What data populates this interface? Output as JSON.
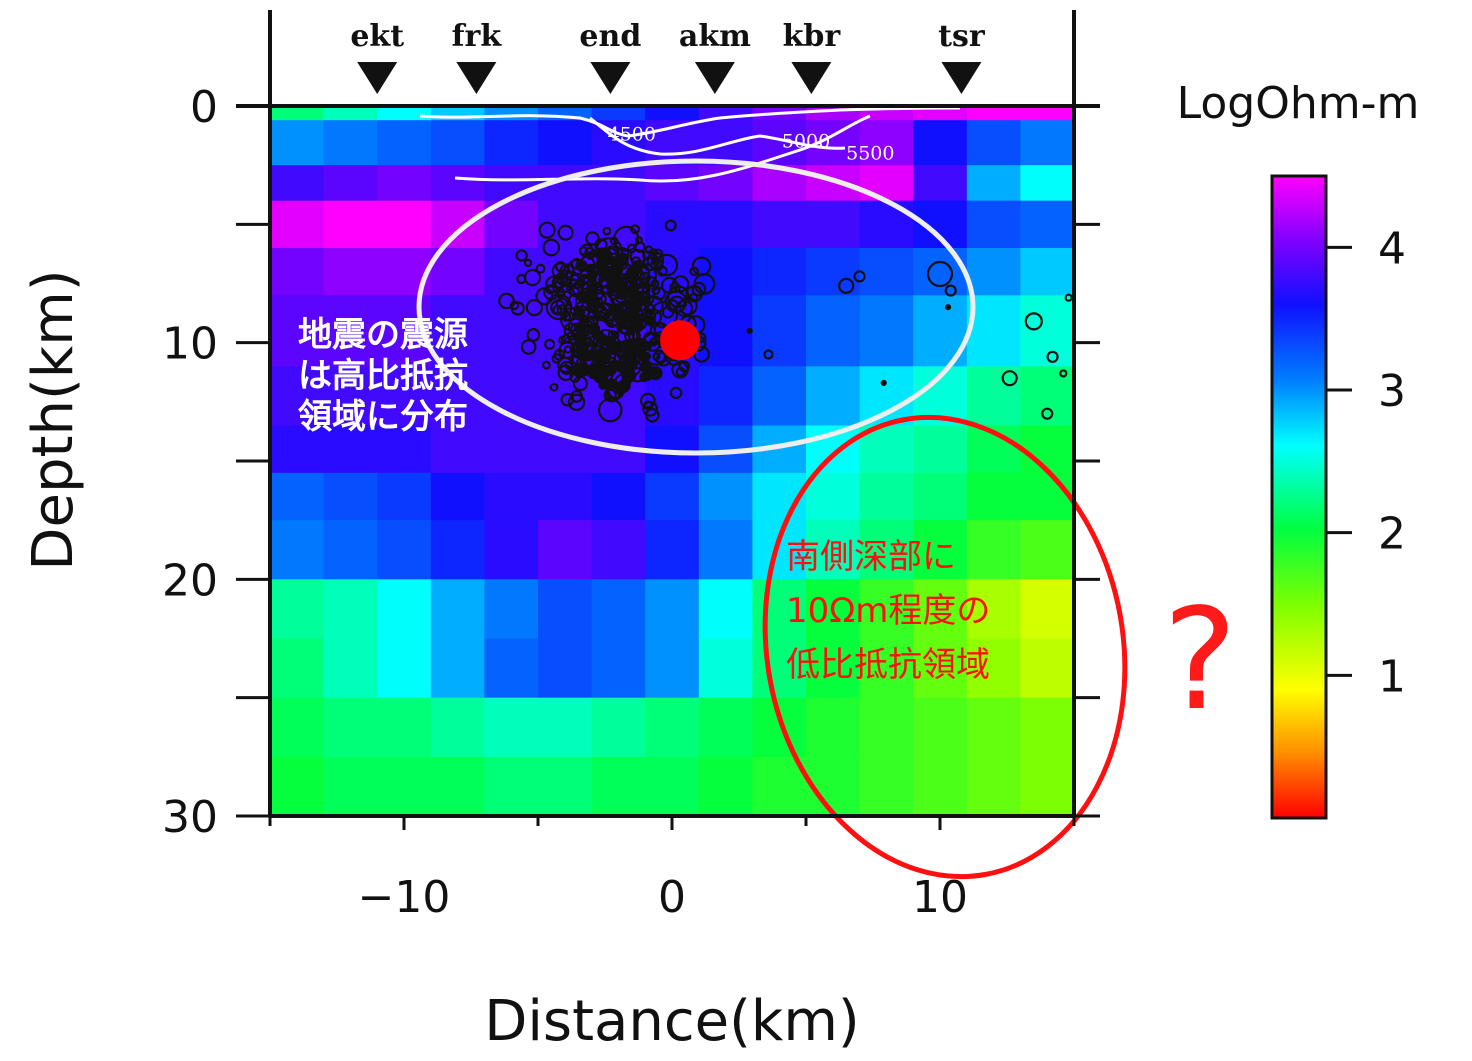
{
  "chart_data": {
    "type": "heatmap",
    "xlabel": "Distance(km)",
    "ylabel": "Depth(km)",
    "xlim": [
      -15,
      15
    ],
    "ylim": [
      0,
      30
    ],
    "x_ticks": [
      -10,
      0,
      10
    ],
    "y_ticks": [
      0,
      10,
      20,
      30
    ],
    "colorbar": {
      "title": "LogOhm-m",
      "range": [
        0,
        4.5
      ],
      "ticks": [
        1,
        2,
        3,
        4
      ],
      "colors": [
        "#ff0000",
        "#ff8c00",
        "#ffff00",
        "#7fff00",
        "#00ff40",
        "#00ffff",
        "#0080ff",
        "#1010ff",
        "#8000ff",
        "#ff00ff"
      ]
    },
    "stations": [
      {
        "name": "ekt",
        "x": -11.0
      },
      {
        "name": "frk",
        "x": -7.3
      },
      {
        "name": "end",
        "x": -2.3
      },
      {
        "name": "akm",
        "x": 1.6
      },
      {
        "name": "kbr",
        "x": 5.2
      },
      {
        "name": "tsr",
        "x": 10.8
      }
    ],
    "contour_labels": [
      {
        "text": "4500",
        "x": -1.5,
        "depth": 1.2
      },
      {
        "text": "5000",
        "x": 5.0,
        "depth": 1.5
      },
      {
        "text": "5500",
        "x": 7.4,
        "depth": 2.0
      }
    ],
    "resistivity_rows": [
      {
        "depth": [
          0,
          0.6
        ],
        "values": [
          2.2,
          2.4,
          2.6,
          2.8,
          3.0,
          3.2,
          3.4,
          3.6,
          3.8,
          4.0,
          4.2,
          4.3,
          4.4,
          4.5,
          4.5
        ]
      },
      {
        "depth": [
          0.6,
          2.5
        ],
        "values": [
          3.0,
          3.1,
          3.2,
          3.3,
          3.5,
          3.6,
          3.7,
          3.8,
          3.8,
          3.9,
          4.0,
          4.1,
          3.6,
          3.3,
          3.1
        ]
      },
      {
        "depth": [
          2.5,
          4.0
        ],
        "values": [
          3.8,
          3.9,
          4.0,
          3.9,
          3.8,
          3.8,
          3.8,
          3.9,
          4.0,
          4.2,
          4.3,
          4.4,
          3.8,
          2.9,
          2.6
        ]
      },
      {
        "depth": [
          4.0,
          6.0
        ],
        "values": [
          4.4,
          4.5,
          4.5,
          4.3,
          4.0,
          3.8,
          3.8,
          3.7,
          3.7,
          3.8,
          3.8,
          3.7,
          3.6,
          3.3,
          3.2
        ]
      },
      {
        "depth": [
          6.0,
          8.0
        ],
        "values": [
          4.0,
          4.1,
          4.1,
          4.0,
          3.8,
          3.8,
          3.8,
          3.7,
          3.6,
          3.5,
          3.4,
          3.3,
          3.2,
          3.0,
          2.8
        ]
      },
      {
        "depth": [
          8.0,
          11.0
        ],
        "values": [
          3.9,
          3.9,
          3.9,
          3.8,
          3.8,
          3.8,
          3.8,
          3.7,
          3.6,
          3.4,
          3.2,
          3.1,
          2.9,
          2.7,
          2.5
        ]
      },
      {
        "depth": [
          11.0,
          13.5
        ],
        "values": [
          3.8,
          3.8,
          3.8,
          3.8,
          3.8,
          3.8,
          3.8,
          3.7,
          3.5,
          3.2,
          2.9,
          2.7,
          2.5,
          2.3,
          2.2
        ]
      },
      {
        "depth": [
          13.5,
          15.5
        ],
        "values": [
          3.7,
          3.7,
          3.7,
          3.8,
          3.8,
          3.8,
          3.8,
          3.6,
          3.3,
          2.9,
          2.6,
          2.4,
          2.3,
          2.1,
          2.0
        ]
      },
      {
        "depth": [
          15.5,
          17.5
        ],
        "values": [
          3.2,
          3.3,
          3.4,
          3.6,
          3.7,
          3.7,
          3.6,
          3.4,
          3.0,
          2.7,
          2.5,
          2.3,
          2.2,
          2.0,
          2.0
        ]
      },
      {
        "depth": [
          17.5,
          20.0
        ],
        "values": [
          3.1,
          3.2,
          3.3,
          3.5,
          3.7,
          3.9,
          3.8,
          3.5,
          3.1,
          2.7,
          2.4,
          2.2,
          2.0,
          1.8,
          1.7
        ]
      },
      {
        "depth": [
          20.0,
          22.5
        ],
        "values": [
          2.3,
          2.4,
          2.6,
          2.9,
          3.1,
          3.3,
          3.2,
          3.0,
          2.6,
          2.2,
          2.0,
          1.8,
          1.6,
          1.3,
          1.1
        ]
      },
      {
        "depth": [
          22.5,
          25.0
        ],
        "values": [
          2.2,
          2.4,
          2.6,
          2.9,
          3.2,
          3.3,
          3.2,
          3.0,
          2.5,
          2.2,
          2.0,
          1.8,
          1.6,
          1.4,
          1.2
        ]
      },
      {
        "depth": [
          25.0,
          27.5
        ],
        "values": [
          2.1,
          2.2,
          2.2,
          2.3,
          2.4,
          2.4,
          2.3,
          2.2,
          2.1,
          2.0,
          1.9,
          1.8,
          1.7,
          1.6,
          1.5
        ]
      },
      {
        "depth": [
          27.5,
          30.0
        ],
        "values": [
          2.0,
          2.1,
          2.1,
          2.1,
          2.2,
          2.2,
          2.1,
          2.1,
          2.0,
          1.9,
          1.9,
          1.8,
          1.7,
          1.6,
          1.5
        ]
      }
    ],
    "main_shock": {
      "x": 0.3,
      "depth": 9.9
    }
  },
  "annotations": {
    "high_resistivity_text": [
      "地震の震源",
      "は高比抵抗",
      "領域に分布"
    ],
    "low_resistivity_text": [
      "南側深部に",
      "10Ωm程度の",
      "低比抵抗領域"
    ],
    "question_mark": "?"
  }
}
